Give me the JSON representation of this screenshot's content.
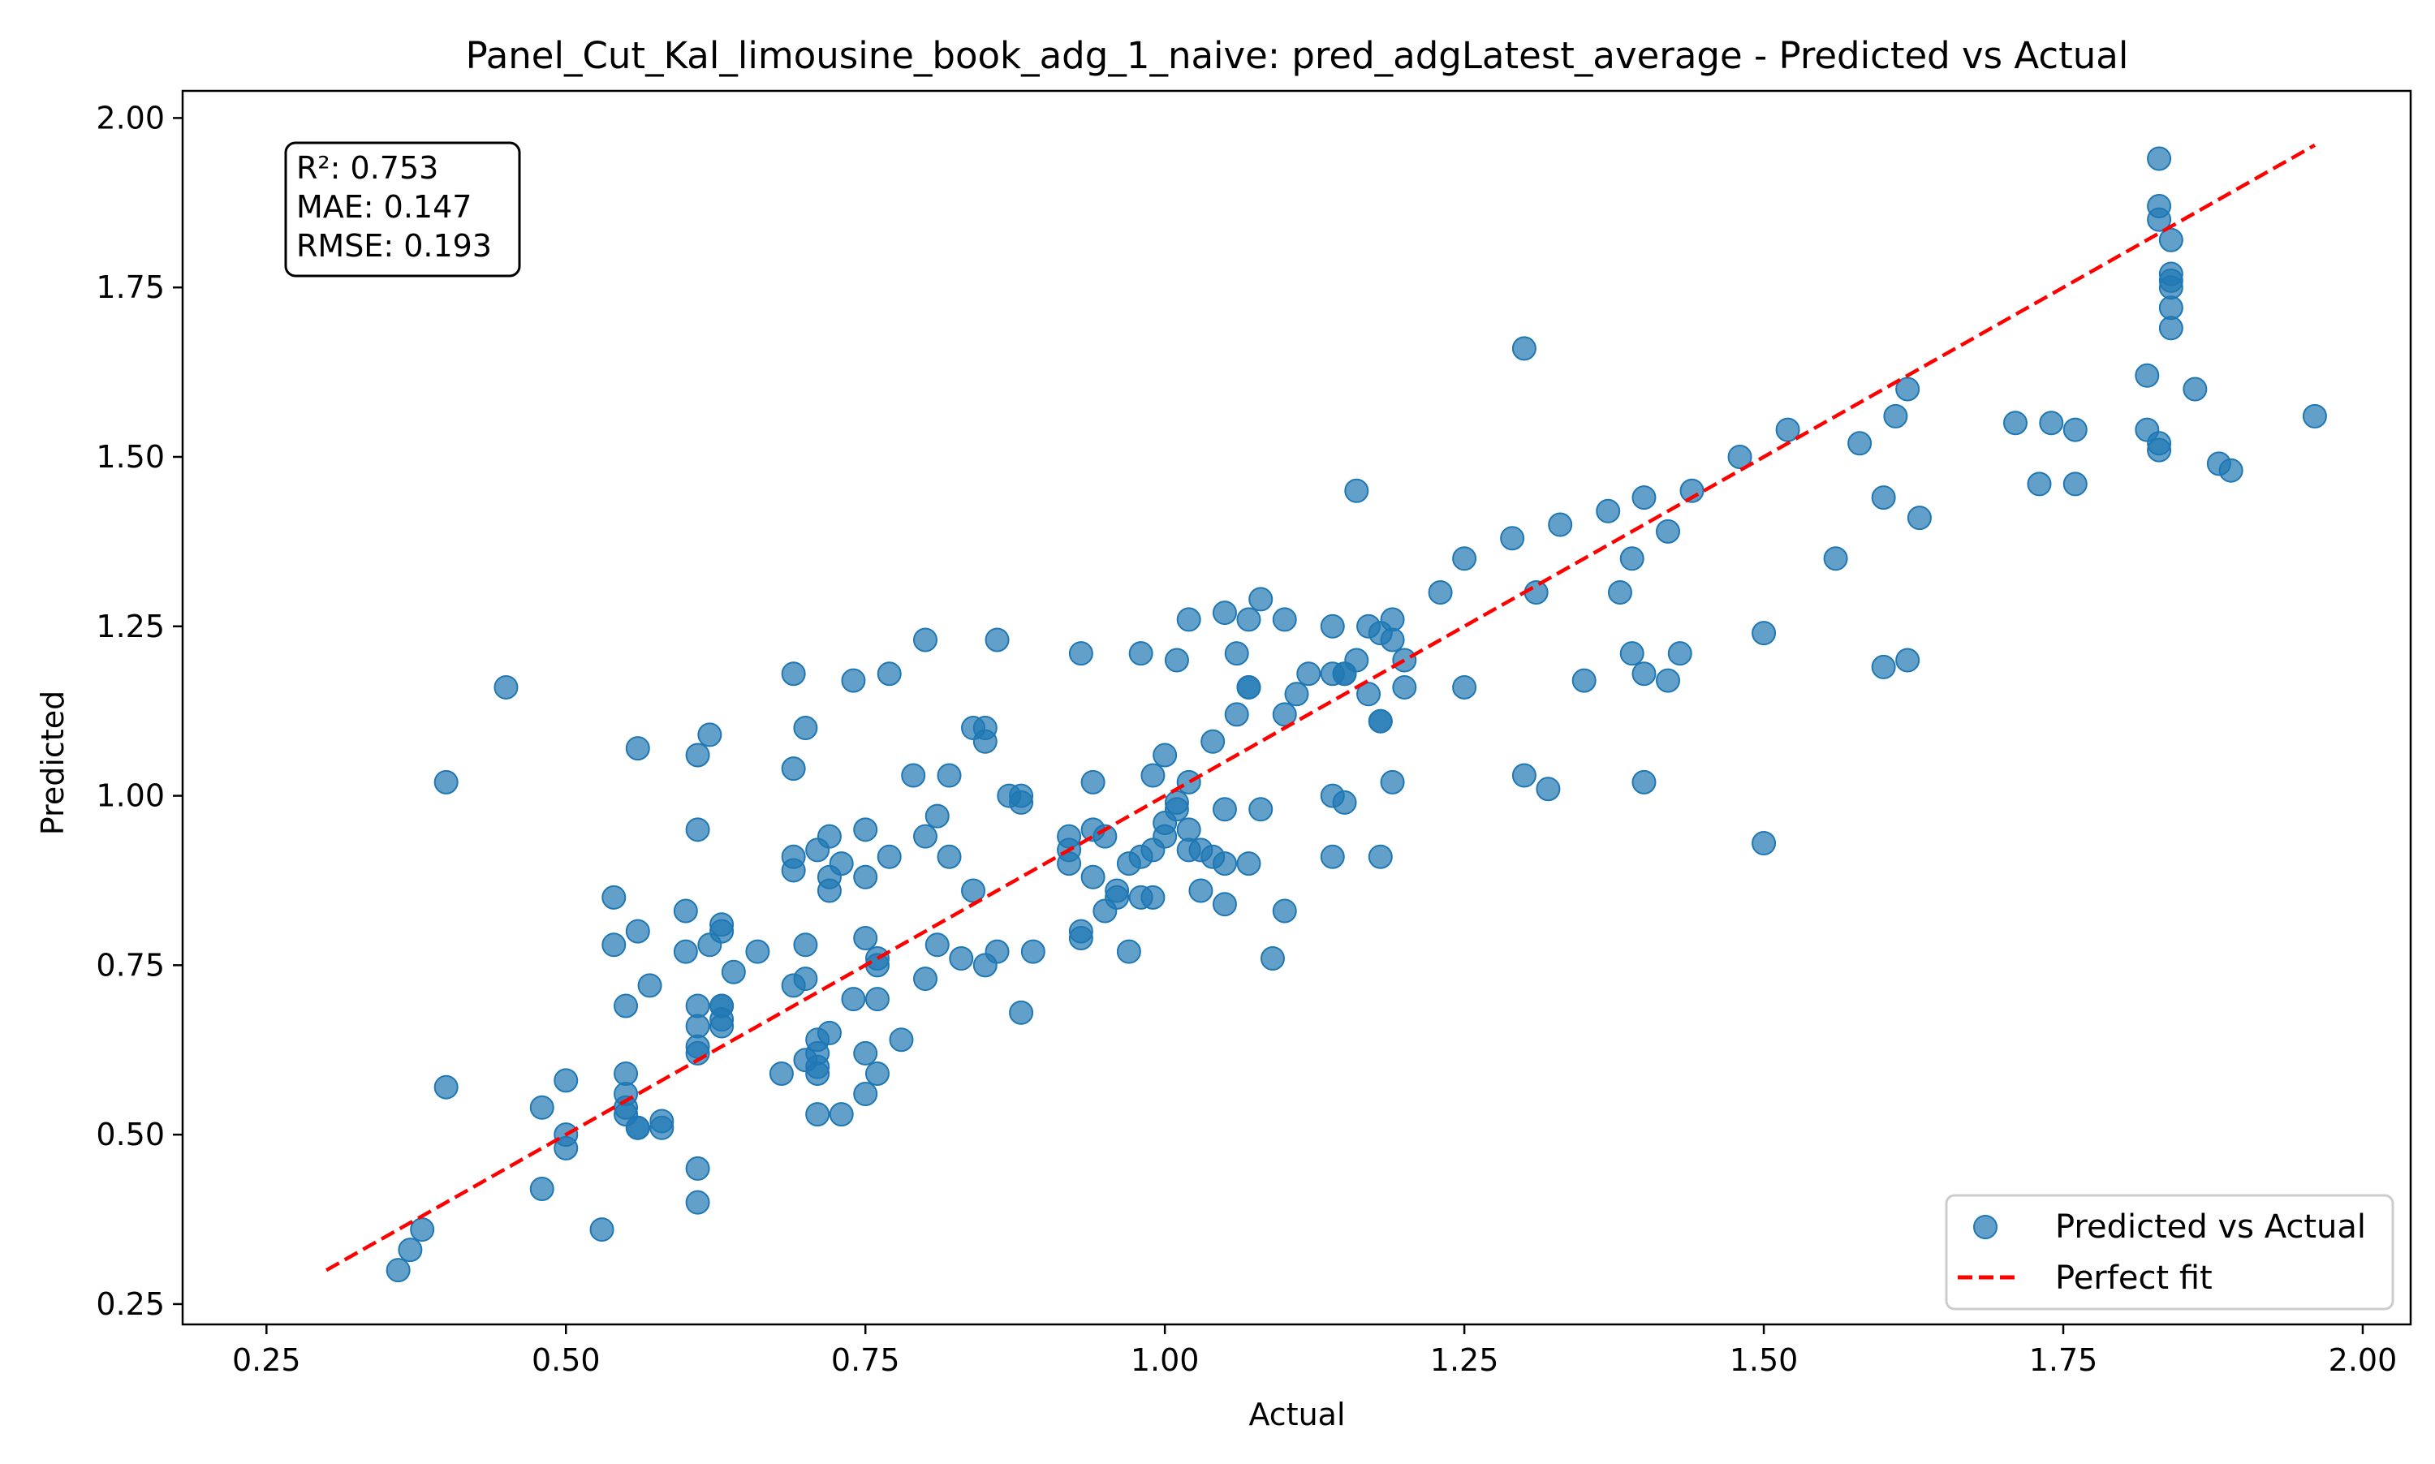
{
  "chart_data": {
    "type": "scatter",
    "title": "Panel_Cut_Kal_limousine_book_adg_1_naive: pred_adgLatest_average - Predicted vs Actual",
    "xlabel": "Actual",
    "ylabel": "Predicted",
    "xlim": [
      0.18,
      2.04
    ],
    "ylim": [
      0.22,
      2.04
    ],
    "xticks": [
      0.25,
      0.5,
      0.75,
      1.0,
      1.25,
      1.5,
      1.75,
      2.0
    ],
    "xtick_labels": [
      "0.25",
      "0.50",
      "0.75",
      "1.00",
      "1.25",
      "1.50",
      "1.75",
      "2.00"
    ],
    "yticks": [
      0.25,
      0.5,
      0.75,
      1.0,
      1.25,
      1.5,
      1.75,
      2.0
    ],
    "ytick_labels": [
      "0.25",
      "0.50",
      "0.75",
      "1.00",
      "1.25",
      "1.50",
      "1.75",
      "2.00"
    ],
    "grid": false,
    "legend_position": "lower-right",
    "stats": {
      "r2": "R²: 0.753",
      "mae": "MAE: 0.147",
      "rmse": "RMSE: 0.193"
    },
    "series": [
      {
        "name": "Predicted vs Actual",
        "kind": "scatter",
        "color": "#1f77b4",
        "points": [
          [
            0.36,
            0.3
          ],
          [
            0.37,
            0.33
          ],
          [
            0.38,
            0.36
          ],
          [
            0.4,
            1.02
          ],
          [
            0.4,
            0.57
          ],
          [
            0.45,
            1.16
          ],
          [
            0.48,
            0.54
          ],
          [
            0.48,
            0.42
          ],
          [
            0.5,
            0.58
          ],
          [
            0.5,
            0.5
          ],
          [
            0.5,
            0.48
          ],
          [
            0.53,
            0.36
          ],
          [
            0.54,
            0.78
          ],
          [
            0.54,
            0.85
          ],
          [
            0.55,
            0.69
          ],
          [
            0.55,
            0.59
          ],
          [
            0.55,
            0.56
          ],
          [
            0.55,
            0.54
          ],
          [
            0.55,
            0.53
          ],
          [
            0.56,
            0.51
          ],
          [
            0.56,
            0.51
          ],
          [
            0.56,
            0.8
          ],
          [
            0.56,
            1.07
          ],
          [
            0.57,
            0.72
          ],
          [
            0.58,
            0.52
          ],
          [
            0.58,
            0.51
          ],
          [
            0.6,
            0.77
          ],
          [
            0.6,
            0.83
          ],
          [
            0.61,
            0.95
          ],
          [
            0.61,
            1.06
          ],
          [
            0.61,
            0.69
          ],
          [
            0.61,
            0.66
          ],
          [
            0.61,
            0.63
          ],
          [
            0.61,
            0.62
          ],
          [
            0.61,
            0.45
          ],
          [
            0.61,
            0.4
          ],
          [
            0.62,
            1.09
          ],
          [
            0.62,
            0.78
          ],
          [
            0.63,
            0.8
          ],
          [
            0.63,
            0.81
          ],
          [
            0.63,
            0.69
          ],
          [
            0.63,
            0.69
          ],
          [
            0.63,
            0.67
          ],
          [
            0.63,
            0.66
          ],
          [
            0.64,
            0.74
          ],
          [
            0.66,
            0.77
          ],
          [
            0.68,
            0.59
          ],
          [
            0.69,
            1.18
          ],
          [
            0.69,
            0.91
          ],
          [
            0.69,
            0.72
          ],
          [
            0.69,
            1.04
          ],
          [
            0.69,
            0.89
          ],
          [
            0.7,
            0.73
          ],
          [
            0.7,
            1.1
          ],
          [
            0.7,
            0.78
          ],
          [
            0.7,
            0.61
          ],
          [
            0.71,
            0.53
          ],
          [
            0.71,
            0.92
          ],
          [
            0.71,
            0.64
          ],
          [
            0.71,
            0.62
          ],
          [
            0.71,
            0.6
          ],
          [
            0.71,
            0.59
          ],
          [
            0.72,
            0.94
          ],
          [
            0.72,
            0.88
          ],
          [
            0.72,
            0.86
          ],
          [
            0.72,
            0.65
          ],
          [
            0.73,
            0.53
          ],
          [
            0.73,
            0.9
          ],
          [
            0.74,
            0.7
          ],
          [
            0.74,
            1.17
          ],
          [
            0.75,
            0.79
          ],
          [
            0.75,
            0.62
          ],
          [
            0.75,
            0.56
          ],
          [
            0.75,
            0.88
          ],
          [
            0.75,
            0.95
          ],
          [
            0.76,
            0.76
          ],
          [
            0.76,
            0.75
          ],
          [
            0.76,
            0.7
          ],
          [
            0.76,
            0.59
          ],
          [
            0.77,
            0.91
          ],
          [
            0.77,
            1.18
          ],
          [
            0.78,
            0.64
          ],
          [
            0.79,
            1.03
          ],
          [
            0.8,
            0.73
          ],
          [
            0.8,
            0.94
          ],
          [
            0.8,
            1.23
          ],
          [
            0.81,
            0.97
          ],
          [
            0.81,
            0.78
          ],
          [
            0.82,
            0.91
          ],
          [
            0.82,
            1.03
          ],
          [
            0.83,
            0.76
          ],
          [
            0.84,
            1.1
          ],
          [
            0.84,
            0.86
          ],
          [
            0.85,
            1.1
          ],
          [
            0.85,
            1.08
          ],
          [
            0.85,
            0.75
          ],
          [
            0.86,
            0.77
          ],
          [
            0.86,
            1.23
          ],
          [
            0.87,
            1.0
          ],
          [
            0.88,
            1.0
          ],
          [
            0.88,
            0.99
          ],
          [
            0.88,
            0.68
          ],
          [
            0.89,
            0.77
          ],
          [
            0.92,
            0.92
          ],
          [
            0.92,
            0.9
          ],
          [
            0.92,
            0.94
          ],
          [
            0.93,
            0.8
          ],
          [
            0.93,
            0.79
          ],
          [
            0.93,
            1.21
          ],
          [
            0.94,
            0.88
          ],
          [
            0.94,
            0.95
          ],
          [
            0.94,
            1.02
          ],
          [
            0.95,
            0.83
          ],
          [
            0.95,
            0.94
          ],
          [
            0.96,
            0.86
          ],
          [
            0.96,
            0.85
          ],
          [
            0.97,
            0.9
          ],
          [
            0.97,
            0.77
          ],
          [
            0.98,
            1.21
          ],
          [
            0.98,
            0.91
          ],
          [
            0.98,
            0.85
          ],
          [
            0.99,
            1.03
          ],
          [
            0.99,
            0.92
          ],
          [
            0.99,
            0.85
          ],
          [
            1.0,
            1.06
          ],
          [
            1.0,
            0.96
          ],
          [
            1.0,
            0.94
          ],
          [
            1.01,
            1.2
          ],
          [
            1.01,
            0.98
          ],
          [
            1.01,
            0.99
          ],
          [
            1.02,
            1.26
          ],
          [
            1.02,
            1.02
          ],
          [
            1.02,
            0.95
          ],
          [
            1.02,
            0.92
          ],
          [
            1.03,
            0.86
          ],
          [
            1.03,
            0.92
          ],
          [
            1.04,
            0.91
          ],
          [
            1.04,
            1.08
          ],
          [
            1.05,
            0.98
          ],
          [
            1.05,
            0.9
          ],
          [
            1.05,
            0.84
          ],
          [
            1.05,
            1.27
          ],
          [
            1.06,
            1.12
          ],
          [
            1.06,
            1.21
          ],
          [
            1.07,
            1.16
          ],
          [
            1.07,
            1.16
          ],
          [
            1.07,
            0.9
          ],
          [
            1.07,
            1.26
          ],
          [
            1.08,
            1.29
          ],
          [
            1.08,
            0.98
          ],
          [
            1.09,
            0.76
          ],
          [
            1.1,
            0.83
          ],
          [
            1.1,
            1.26
          ],
          [
            1.1,
            1.12
          ],
          [
            1.11,
            1.15
          ],
          [
            1.12,
            1.18
          ],
          [
            1.14,
            0.91
          ],
          [
            1.14,
            1.25
          ],
          [
            1.14,
            1.0
          ],
          [
            1.14,
            1.18
          ],
          [
            1.15,
            0.99
          ],
          [
            1.15,
            1.18
          ],
          [
            1.15,
            1.18
          ],
          [
            1.16,
            1.45
          ],
          [
            1.16,
            1.2
          ],
          [
            1.17,
            1.15
          ],
          [
            1.17,
            1.25
          ],
          [
            1.18,
            1.11
          ],
          [
            1.18,
            0.91
          ],
          [
            1.18,
            1.24
          ],
          [
            1.18,
            1.11
          ],
          [
            1.19,
            1.26
          ],
          [
            1.19,
            1.02
          ],
          [
            1.19,
            1.23
          ],
          [
            1.2,
            1.2
          ],
          [
            1.2,
            1.16
          ],
          [
            1.23,
            1.3
          ],
          [
            1.25,
            1.16
          ],
          [
            1.25,
            1.35
          ],
          [
            1.29,
            1.38
          ],
          [
            1.3,
            1.66
          ],
          [
            1.3,
            1.03
          ],
          [
            1.31,
            1.3
          ],
          [
            1.32,
            1.01
          ],
          [
            1.33,
            1.4
          ],
          [
            1.35,
            1.17
          ],
          [
            1.37,
            1.42
          ],
          [
            1.38,
            1.3
          ],
          [
            1.39,
            1.21
          ],
          [
            1.39,
            1.35
          ],
          [
            1.4,
            1.44
          ],
          [
            1.4,
            1.18
          ],
          [
            1.4,
            1.02
          ],
          [
            1.42,
            1.39
          ],
          [
            1.42,
            1.17
          ],
          [
            1.43,
            1.21
          ],
          [
            1.44,
            1.45
          ],
          [
            1.48,
            1.5
          ],
          [
            1.5,
            1.24
          ],
          [
            1.5,
            0.93
          ],
          [
            1.52,
            1.54
          ],
          [
            1.56,
            1.35
          ],
          [
            1.58,
            1.52
          ],
          [
            1.6,
            1.44
          ],
          [
            1.6,
            1.19
          ],
          [
            1.61,
            1.56
          ],
          [
            1.62,
            1.2
          ],
          [
            1.62,
            1.6
          ],
          [
            1.63,
            1.41
          ],
          [
            1.71,
            1.55
          ],
          [
            1.73,
            1.46
          ],
          [
            1.74,
            1.55
          ],
          [
            1.76,
            1.54
          ],
          [
            1.76,
            1.46
          ],
          [
            1.82,
            1.54
          ],
          [
            1.82,
            1.62
          ],
          [
            1.83,
            1.94
          ],
          [
            1.83,
            1.52
          ],
          [
            1.83,
            1.85
          ],
          [
            1.83,
            1.51
          ],
          [
            1.83,
            1.87
          ],
          [
            1.84,
            1.82
          ],
          [
            1.84,
            1.77
          ],
          [
            1.84,
            1.76
          ],
          [
            1.84,
            1.75
          ],
          [
            1.84,
            1.72
          ],
          [
            1.84,
            1.69
          ],
          [
            1.86,
            1.6
          ],
          [
            1.88,
            1.49
          ],
          [
            1.89,
            1.48
          ],
          [
            1.96,
            1.56
          ]
        ]
      },
      {
        "name": "Perfect fit",
        "kind": "line",
        "style": "dashed",
        "color": "#ff0000",
        "points": [
          [
            0.3,
            0.3
          ],
          [
            1.96,
            1.96
          ]
        ]
      }
    ]
  }
}
